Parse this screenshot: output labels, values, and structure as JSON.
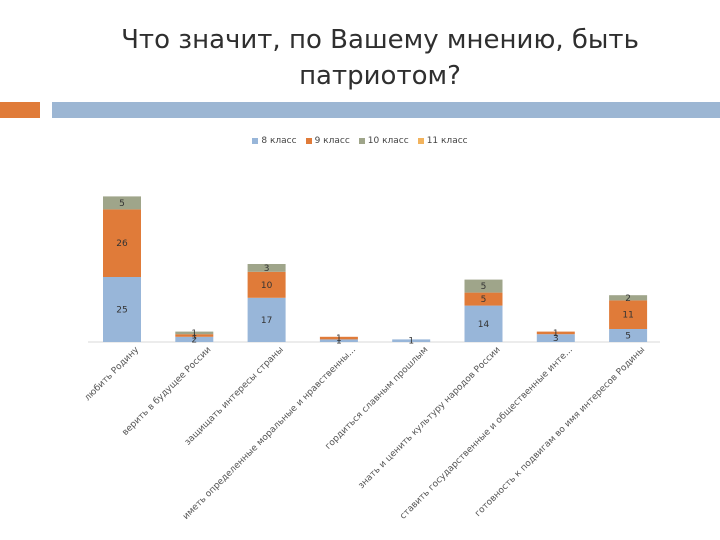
{
  "title_lines": [
    "Что значит, по Вашему мнению, быть",
    "патриотом?"
  ],
  "colors": {
    "accent_left": "#E07B39",
    "accent_right": "#9CB6D3",
    "series": [
      "#98B6D9",
      "#E07B39",
      "#9FA58A",
      "#F2B35D"
    ]
  },
  "chart_data": {
    "type": "bar",
    "stacked": true,
    "title": "Что значит, по Вашему мнению, быть патриотом?",
    "legend_position": "top",
    "series": [
      {
        "name": "8 класс",
        "values": [
          25,
          2,
          17,
          1,
          1,
          14,
          3,
          5
        ]
      },
      {
        "name": "9 класс",
        "values": [
          26,
          1,
          10,
          1,
          0,
          5,
          1,
          11
        ]
      },
      {
        "name": "10 класс",
        "values": [
          5,
          1,
          3,
          0,
          0,
          5,
          0,
          2
        ]
      },
      {
        "name": "11 класс",
        "values": [
          0,
          0,
          0,
          0,
          0,
          0,
          0,
          0
        ]
      }
    ],
    "data_labels": [
      [
        "25",
        "26",
        "5"
      ],
      [
        "2",
        "1",
        "1"
      ],
      [
        "17",
        "10",
        "3"
      ],
      [
        "1",
        "1",
        ""
      ],
      [
        "1",
        "",
        ""
      ],
      [
        "14",
        "5",
        "5"
      ],
      [
        "3",
        "1",
        ""
      ],
      [
        "5",
        "11",
        "2"
      ]
    ],
    "categories": [
      "любить Родину",
      "верить в будущее России",
      "защищать интересы страны",
      "иметь определенные моральные и нравственны...",
      "гордиться славным прошлым",
      "знать и ценить культуру народов России",
      "ставить государственные и общественные инте...",
      "готовность к подвигам во имя интересов Родины"
    ]
  }
}
